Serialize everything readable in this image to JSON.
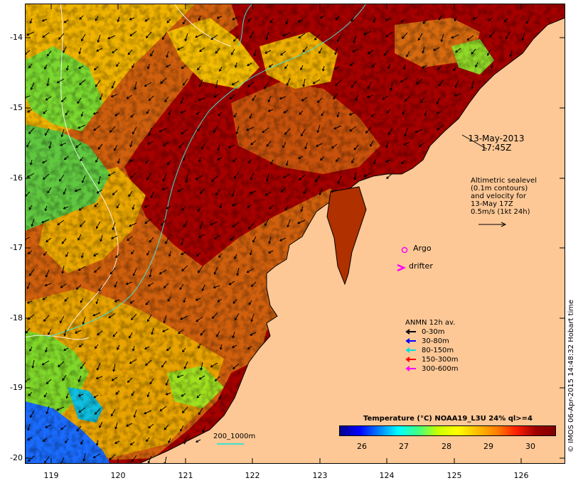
{
  "map": {
    "date": "13-May-2013",
    "time": "17:45Z",
    "y_axis_ticks": [
      "-14",
      "-15",
      "-16",
      "-17",
      "-18",
      "-19",
      "-20"
    ],
    "x_axis_ticks": [
      "119",
      "120",
      "121",
      "122",
      "123",
      "124",
      "125",
      "126"
    ],
    "lat_range": [
      -20.1,
      -13.5
    ],
    "lon_range": [
      118.65,
      126.7
    ]
  },
  "altimetry": {
    "lines": [
      "Altimetric sealevel",
      "(0.1m contours)",
      "and velocity for",
      "13-May 17Z",
      "0.5m/s (1kt 24h)"
    ]
  },
  "markers": {
    "argo_label": "Argo",
    "argo_color": "#ff00ff",
    "drifter_label": "drifter",
    "drifter_color": "#ff00ff"
  },
  "anmn": {
    "title": "ANMN 12h av.",
    "entries": [
      {
        "label": "0-30m",
        "color": "#000000"
      },
      {
        "label": "30-80m",
        "color": "#0000ff"
      },
      {
        "label": "80-150m",
        "color": "#00e0e0"
      },
      {
        "label": "150-300m",
        "color": "#ff0000"
      },
      {
        "label": "300-600m",
        "color": "#ff00ff"
      }
    ]
  },
  "colorbar": {
    "title": "Temperature (°C) NOAA19_L3U 24% ql>=4",
    "ticks": [
      "26",
      "27",
      "28",
      "29",
      "30"
    ],
    "range": [
      25.5,
      30.6
    ]
  },
  "scale": {
    "label": "200_1000m",
    "color": "#40e0d0"
  },
  "credit": "© IMOS 06-Apr-2015 14:48:32 Hobart time",
  "colors": {
    "land": "#fdc896",
    "hot": "#a60000",
    "warm": "#d4620c",
    "mid": "#f5b800",
    "cool": "#88e030",
    "cold": "#1080ff"
  }
}
